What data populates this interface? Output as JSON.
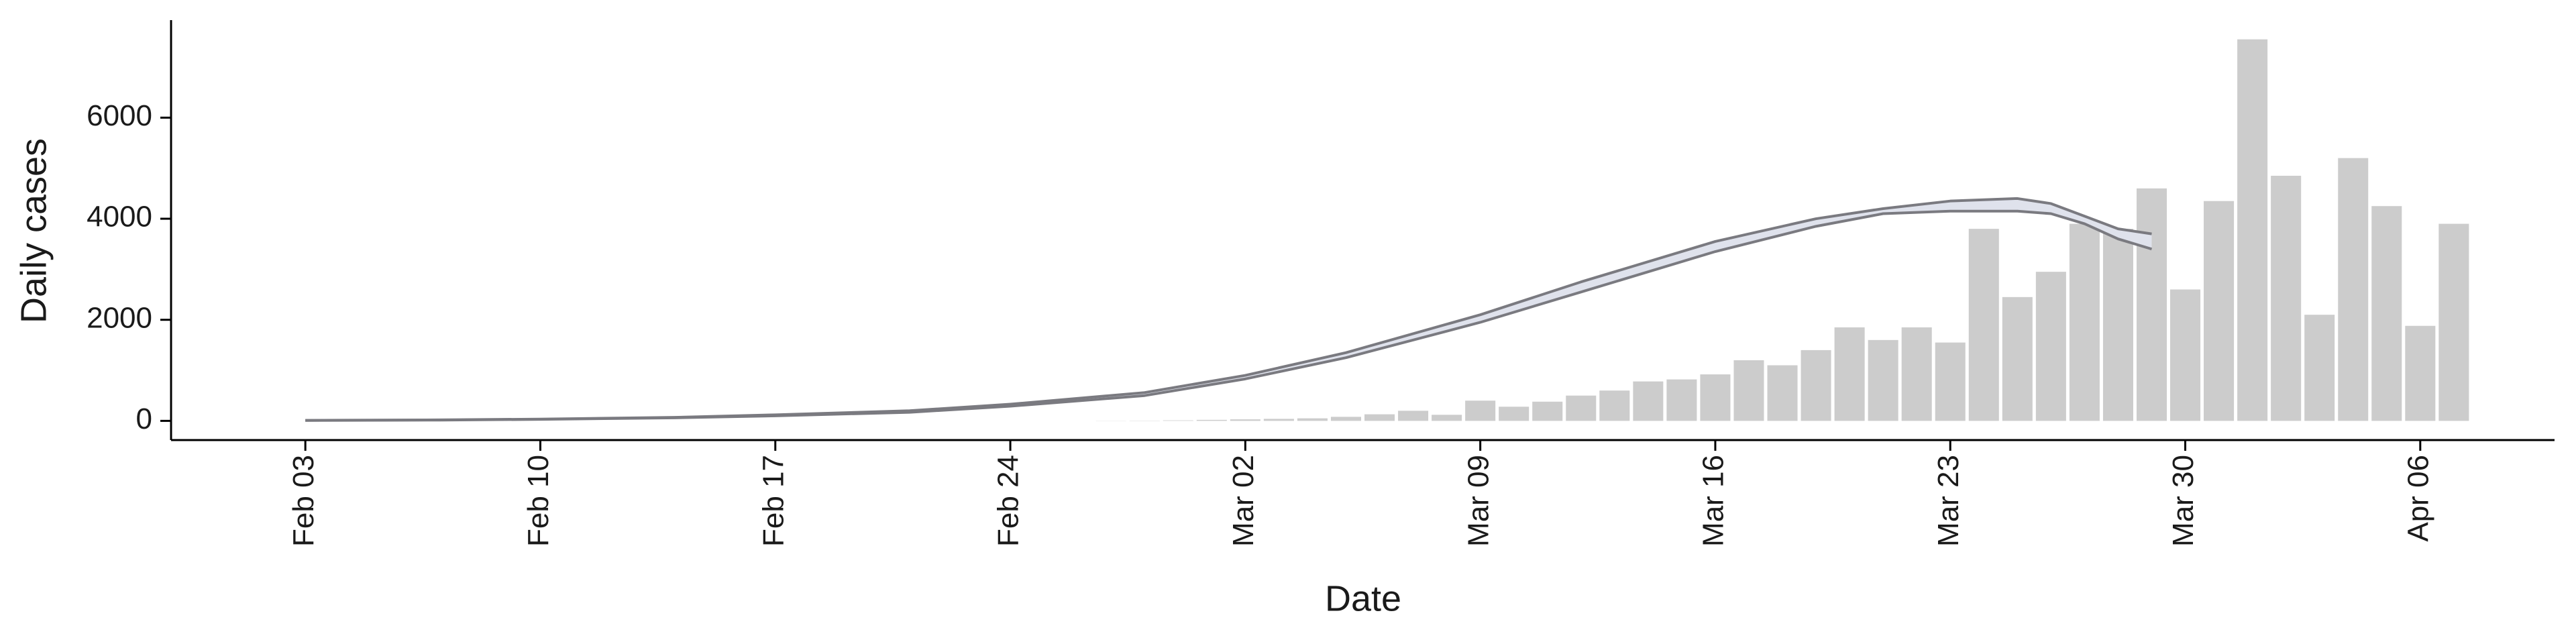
{
  "chart_data": [
    {
      "type": "bar",
      "x_label": "Date",
      "y_label": "Daily cases",
      "x": [
        "Feb 27",
        "Feb 28",
        "Feb 29",
        "Mar 01",
        "Mar 02",
        "Mar 03",
        "Mar 04",
        "Mar 05",
        "Mar 06",
        "Mar 07",
        "Mar 08",
        "Mar 09",
        "Mar 10",
        "Mar 11",
        "Mar 12",
        "Mar 13",
        "Mar 14",
        "Mar 15",
        "Mar 16",
        "Mar 17",
        "Mar 18",
        "Mar 19",
        "Mar 20",
        "Mar 21",
        "Mar 22",
        "Mar 23",
        "Mar 24",
        "Mar 25",
        "Mar 26",
        "Mar 27",
        "Mar 28",
        "Mar 29",
        "Mar 30",
        "Mar 31",
        "Apr 01",
        "Apr 02",
        "Apr 03",
        "Apr 04",
        "Apr 05",
        "Apr 06",
        "Apr 07"
      ],
      "values": [
        3,
        5,
        10,
        20,
        30,
        40,
        50,
        80,
        130,
        200,
        120,
        400,
        280,
        380,
        500,
        600,
        780,
        820,
        920,
        1200,
        1100,
        1400,
        1850,
        1600,
        1850,
        1550,
        3800,
        2450,
        2950,
        3900,
        3800,
        4600,
        2600,
        4350,
        7550,
        4850,
        2100,
        5200,
        4250,
        1880,
        3900
      ],
      "color": "#cccccc",
      "xlim": [
        "Jan 30",
        "Apr 10"
      ],
      "xticks": [
        "Feb 03",
        "Feb 10",
        "Feb 17",
        "Feb 24",
        "Mar 02",
        "Mar 09",
        "Mar 16",
        "Mar 23",
        "Mar 30",
        "Apr 06"
      ],
      "ylim": [
        -380,
        7930
      ],
      "yticks": [
        0,
        2000,
        4000,
        6000
      ]
    },
    {
      "type": "line",
      "x": [
        "Feb 03",
        "Feb 07",
        "Feb 10",
        "Feb 14",
        "Feb 17",
        "Feb 21",
        "Feb 24",
        "Feb 28",
        "Mar 02",
        "Mar 05",
        "Mar 09",
        "Mar 12",
        "Mar 16",
        "Mar 19",
        "Mar 21",
        "Mar 23",
        "Mar 25",
        "Mar 26",
        "Mar 27",
        "Mar 28",
        "Mar 29"
      ],
      "band_color": "#dfe2ec",
      "series": [
        {
          "color": "#7a7a80",
          "values": [
            10,
            20,
            35,
            70,
            120,
            200,
            330,
            560,
            900,
            1350,
            2100,
            2750,
            3550,
            4000,
            4200,
            4350,
            4400,
            4300,
            4050,
            3800,
            3700
          ]
        },
        {
          "color": "#7a7a80",
          "values": [
            8,
            15,
            30,
            60,
            100,
            170,
            290,
            500,
            830,
            1250,
            1950,
            2550,
            3350,
            3850,
            4100,
            4150,
            4150,
            4100,
            3900,
            3600,
            3400
          ]
        }
      ]
    }
  ]
}
